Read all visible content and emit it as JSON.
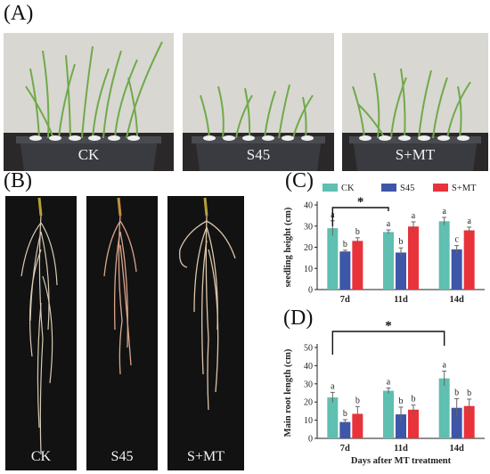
{
  "panels": {
    "a": {
      "label": "(A)",
      "captions": [
        "CK",
        "S45",
        "S+MT"
      ]
    },
    "b": {
      "label": "(B)",
      "captions": [
        "CK",
        "S45",
        "S+MT"
      ]
    },
    "c": {
      "label": "(C)"
    },
    "d": {
      "label": "(D)"
    }
  },
  "colors": {
    "CK": "#5fbfb0",
    "S45": "#3e56a8",
    "S+MT": "#e8333a"
  },
  "chart_data": [
    {
      "type": "bar",
      "panel": "C",
      "categories": [
        "7d",
        "11d",
        "14d"
      ],
      "series": [
        {
          "name": "CK",
          "values": [
            29,
            27.2,
            32.3
          ],
          "errors": [
            3.5,
            1.0,
            1.8
          ],
          "letters": [
            "a",
            "a",
            "a"
          ]
        },
        {
          "name": "S45",
          "values": [
            18,
            17.5,
            19
          ],
          "errors": [
            0.6,
            2.2,
            1.8
          ],
          "letters": [
            "b",
            "b",
            "c"
          ]
        },
        {
          "name": "S+MT",
          "values": [
            23,
            29.8,
            28
          ],
          "errors": [
            1.5,
            2.2,
            1.5
          ],
          "letters": [
            "b",
            "a",
            "a"
          ]
        }
      ],
      "ylabel": "seedling height (cm)",
      "xlabel": "",
      "yticks": [
        0,
        10,
        20,
        30,
        40
      ],
      "ylim": [
        0,
        40
      ],
      "legend": "top",
      "annotations": [
        {
          "text": "*",
          "from": "7d",
          "to": "11d"
        }
      ]
    },
    {
      "type": "bar",
      "panel": "D",
      "categories": [
        "7d",
        "11d",
        "14d"
      ],
      "series": [
        {
          "name": "CK",
          "values": [
            22.5,
            26.2,
            33
          ],
          "errors": [
            2.8,
            1.5,
            4.0
          ],
          "letters": [
            "a",
            "a",
            "a"
          ]
        },
        {
          "name": "S45",
          "values": [
            9,
            13.2,
            16.8
          ],
          "errors": [
            1.3,
            4.0,
            5.0
          ],
          "letters": [
            "b",
            "b",
            "b"
          ]
        },
        {
          "name": "S+MT",
          "values": [
            13.5,
            15.8,
            17.8
          ],
          "errors": [
            4.0,
            2.5,
            3.8
          ],
          "letters": [
            "b",
            "b",
            "b"
          ]
        }
      ],
      "ylabel": "Main root length (cm)",
      "xlabel": "Days after MT treatment",
      "yticks": [
        0,
        10,
        20,
        30,
        40,
        50
      ],
      "ylim": [
        0,
        50
      ],
      "annotations": [
        {
          "text": "*",
          "from": "7d",
          "to": "14d"
        }
      ]
    }
  ]
}
